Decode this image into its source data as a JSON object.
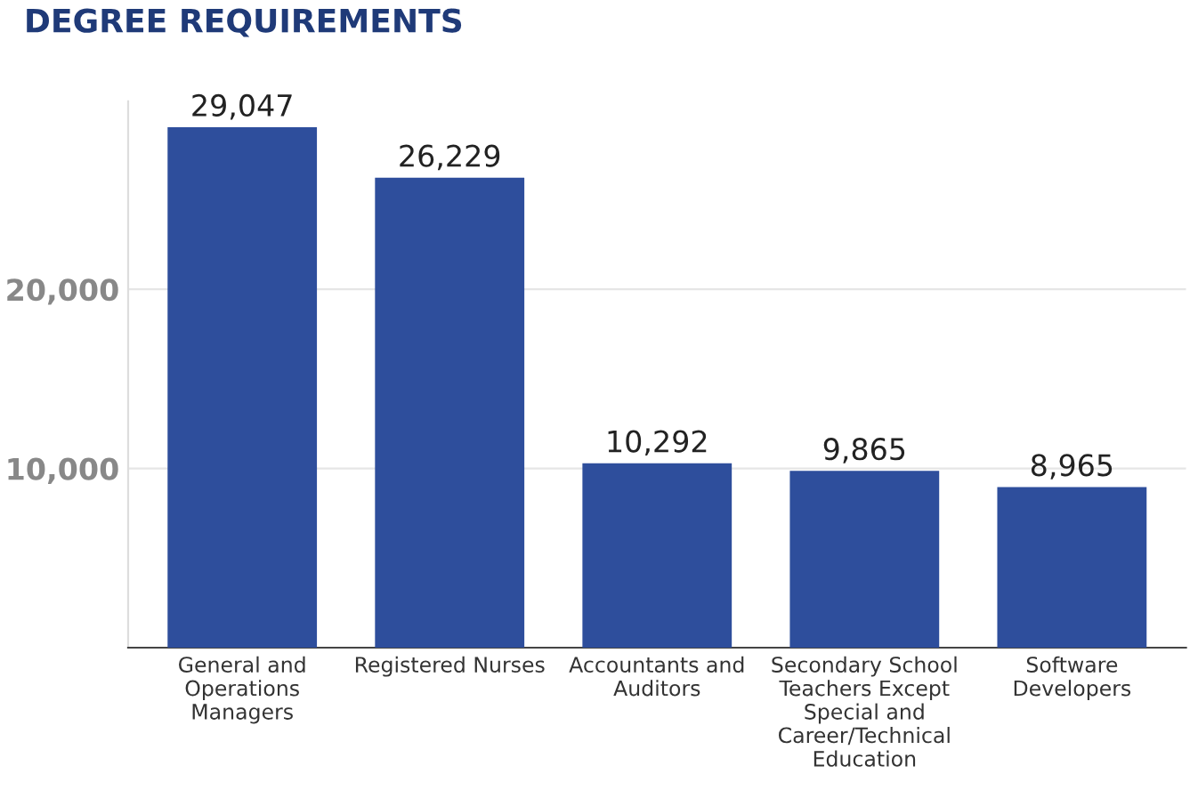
{
  "chart_data": {
    "type": "bar",
    "title": "DEGREE REQUIREMENTS",
    "categories": [
      "General and\nOperations\nManagers",
      "Registered Nurses",
      "Accountants and\nAuditors",
      "Secondary School\nTeachers Except\nSpecial and\nCareer/Technical\nEducation",
      "Software\nDevelopers"
    ],
    "values": [
      29047,
      26229,
      10292,
      9865,
      8965
    ],
    "value_labels": [
      "29,047",
      "26,229",
      "10,292",
      "9,865",
      "8,965"
    ],
    "color": "#2e4e9c",
    "ylim": [
      0,
      30500
    ],
    "yticks": [
      {
        "value": 10000,
        "label": "10,000"
      },
      {
        "value": 20000,
        "label": "20,000"
      }
    ],
    "grid": "y"
  }
}
